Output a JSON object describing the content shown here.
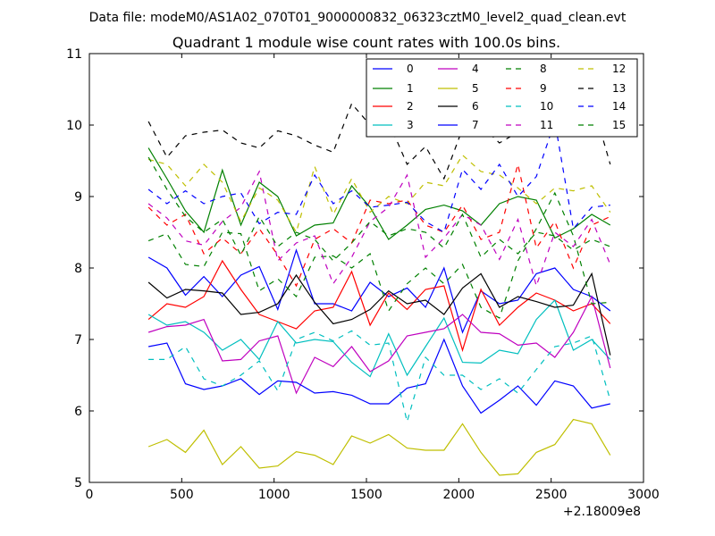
{
  "figure": {
    "suptitle": "Data file: modeM0/AS1A02_070T01_9000000832_06323cztM0_level2_quad_clean.evt"
  },
  "chart_data": {
    "type": "line",
    "title": "Quadrant 1 module wise count rates with 100.0s bins.",
    "xlabel": "",
    "ylabel": "",
    "x_offset_label": "+2.18009e8",
    "xlim": [
      0,
      3000
    ],
    "ylim": [
      5,
      11
    ],
    "xticks": [
      0,
      500,
      1000,
      1500,
      2000,
      2500,
      3000
    ],
    "yticks": [
      5,
      6,
      7,
      8,
      9,
      10,
      11
    ],
    "grid": false,
    "legend_position": "top-right",
    "x": [
      320,
      420,
      520,
      620,
      720,
      820,
      920,
      1020,
      1120,
      1220,
      1320,
      1420,
      1520,
      1620,
      1720,
      1820,
      1920,
      2020,
      2120,
      2220,
      2320,
      2420,
      2520,
      2620,
      2720,
      2820
    ],
    "series": [
      {
        "name": "0",
        "color": "#0000ff",
        "dash": "solid",
        "values": [
          8.15,
          8.0,
          7.62,
          7.88,
          7.6,
          7.9,
          8.02,
          7.42,
          8.25,
          7.5,
          7.5,
          7.4,
          7.8,
          7.6,
          7.72,
          7.45,
          8.0,
          7.1,
          7.68,
          7.5,
          7.55,
          7.92,
          8.0,
          7.7,
          7.6,
          7.4
        ]
      },
      {
        "name": "1",
        "color": "#008000",
        "dash": "solid",
        "values": [
          9.68,
          9.25,
          8.8,
          8.5,
          9.37,
          8.6,
          9.2,
          9.0,
          8.45,
          8.6,
          8.63,
          9.15,
          8.85,
          8.4,
          8.6,
          8.82,
          8.88,
          8.8,
          8.6,
          8.9,
          9.0,
          8.95,
          8.42,
          8.55,
          8.75,
          8.6
        ]
      },
      {
        "name": "2",
        "color": "#ff0000",
        "dash": "solid",
        "values": [
          7.28,
          7.5,
          7.45,
          7.6,
          8.1,
          7.7,
          7.35,
          7.25,
          7.15,
          7.4,
          7.45,
          7.95,
          7.2,
          7.65,
          7.42,
          7.7,
          7.75,
          6.85,
          7.7,
          7.2,
          7.45,
          7.65,
          7.55,
          7.4,
          7.5,
          7.22
        ]
      },
      {
        "name": "3",
        "color": "#00bfbf",
        "dash": "solid",
        "values": [
          7.35,
          7.2,
          7.25,
          7.1,
          6.85,
          7.0,
          6.72,
          7.25,
          6.95,
          7.0,
          6.97,
          6.68,
          6.48,
          7.08,
          6.5,
          6.9,
          7.3,
          6.68,
          6.67,
          6.85,
          6.8,
          7.28,
          7.55,
          6.85,
          7.0,
          6.72
        ]
      },
      {
        "name": "4",
        "color": "#bf00bf",
        "dash": "solid",
        "values": [
          7.1,
          7.18,
          7.2,
          7.28,
          6.7,
          6.72,
          6.98,
          7.05,
          6.25,
          6.75,
          6.62,
          6.9,
          6.55,
          6.7,
          7.05,
          7.1,
          7.15,
          7.35,
          7.1,
          7.08,
          6.92,
          6.95,
          6.75,
          7.1,
          7.6,
          6.6
        ]
      },
      {
        "name": "5",
        "color": "#bfbf00",
        "dash": "solid",
        "values": [
          5.5,
          5.6,
          5.42,
          5.73,
          5.25,
          5.5,
          5.2,
          5.23,
          5.43,
          5.38,
          5.25,
          5.65,
          5.55,
          5.67,
          5.48,
          5.45,
          5.45,
          5.82,
          5.42,
          5.1,
          5.12,
          5.42,
          5.53,
          5.88,
          5.82,
          5.38
        ]
      },
      {
        "name": "6",
        "color": "#000000",
        "dash": "solid",
        "values": [
          7.8,
          7.58,
          7.7,
          7.68,
          7.65,
          7.35,
          7.38,
          7.5,
          7.9,
          7.52,
          7.22,
          7.28,
          7.42,
          7.68,
          7.5,
          7.55,
          7.35,
          7.72,
          7.92,
          7.45,
          7.6,
          7.53,
          7.45,
          7.48,
          7.92,
          6.78
        ]
      },
      {
        "name": "7",
        "color": "#0000ff",
        "dash": "solid",
        "values": [
          6.9,
          6.95,
          6.38,
          6.3,
          6.35,
          6.45,
          6.23,
          6.42,
          6.4,
          6.25,
          6.27,
          6.22,
          6.1,
          6.1,
          6.32,
          6.38,
          7.0,
          6.35,
          5.97,
          6.15,
          6.35,
          6.08,
          6.42,
          6.35,
          6.04,
          6.1
        ]
      },
      {
        "name": "8",
        "color": "#008000",
        "dash": "dashed",
        "values": [
          8.38,
          8.48,
          8.05,
          8.02,
          8.5,
          8.48,
          7.68,
          7.85,
          7.6,
          8.15,
          8.17,
          8.0,
          8.2,
          7.4,
          7.78,
          8.0,
          7.78,
          8.05,
          7.45,
          7.3,
          8.1,
          8.55,
          9.05,
          8.45,
          7.5,
          7.52
        ]
      },
      {
        "name": "9",
        "color": "#ff0000",
        "dash": "dashed",
        "values": [
          8.85,
          8.6,
          8.75,
          8.2,
          8.42,
          8.2,
          8.55,
          8.18,
          7.75,
          8.4,
          8.55,
          8.35,
          8.95,
          8.9,
          8.95,
          8.6,
          8.5,
          8.88,
          8.4,
          8.5,
          9.45,
          8.28,
          8.65,
          8.0,
          8.6,
          8.72
        ]
      },
      {
        "name": "10",
        "color": "#00bfbf",
        "dash": "dashed",
        "values": [
          6.72,
          6.72,
          6.9,
          6.45,
          6.35,
          6.5,
          6.7,
          6.28,
          7.0,
          7.1,
          6.98,
          7.12,
          6.92,
          6.95,
          5.85,
          6.75,
          6.5,
          6.5,
          6.3,
          6.45,
          6.25,
          6.58,
          6.9,
          6.95,
          7.05,
          6.15
        ]
      },
      {
        "name": "11",
        "color": "#bf00bf",
        "dash": "dashed",
        "values": [
          8.9,
          8.7,
          8.38,
          8.32,
          8.65,
          8.85,
          9.35,
          8.1,
          8.35,
          8.45,
          7.78,
          8.15,
          8.65,
          8.85,
          9.3,
          8.15,
          8.42,
          8.75,
          8.6,
          8.12,
          8.68,
          7.75,
          8.5,
          8.3,
          8.68,
          8.05
        ]
      },
      {
        "name": "12",
        "color": "#bfbf00",
        "dash": "dashed",
        "values": [
          9.52,
          9.45,
          9.15,
          9.45,
          9.2,
          8.65,
          9.12,
          8.95,
          8.5,
          9.42,
          8.75,
          9.25,
          8.78,
          9.0,
          8.9,
          9.2,
          9.15,
          9.58,
          9.35,
          9.3,
          9.12,
          8.9,
          9.12,
          9.08,
          9.15,
          8.78
        ]
      },
      {
        "name": "13",
        "color": "#000000",
        "dash": "dashed",
        "values": [
          10.05,
          9.55,
          9.85,
          9.9,
          9.93,
          9.75,
          9.68,
          9.92,
          9.85,
          9.72,
          9.62,
          10.3,
          10.0,
          10.05,
          9.45,
          9.7,
          9.25,
          9.95,
          10.0,
          9.75,
          9.9,
          9.95,
          10.15,
          10.5,
          10.35,
          9.45
        ]
      },
      {
        "name": "14",
        "color": "#0000ff",
        "dash": "dashed",
        "values": [
          9.1,
          8.9,
          9.08,
          8.9,
          9.0,
          9.05,
          8.62,
          8.78,
          8.75,
          9.3,
          8.9,
          9.08,
          8.85,
          8.88,
          8.92,
          8.65,
          8.5,
          9.38,
          9.1,
          9.45,
          9.0,
          9.28,
          10.05,
          8.55,
          8.85,
          8.88
        ]
      },
      {
        "name": "15",
        "color": "#008000",
        "dash": "dashed",
        "values": [
          9.55,
          9.1,
          8.72,
          8.5,
          8.68,
          8.18,
          8.72,
          8.3,
          8.5,
          8.4,
          8.1,
          8.35,
          8.65,
          8.45,
          8.55,
          8.5,
          8.28,
          8.75,
          8.15,
          8.4,
          8.2,
          8.5,
          8.45,
          8.25,
          8.4,
          8.3
        ]
      }
    ]
  }
}
